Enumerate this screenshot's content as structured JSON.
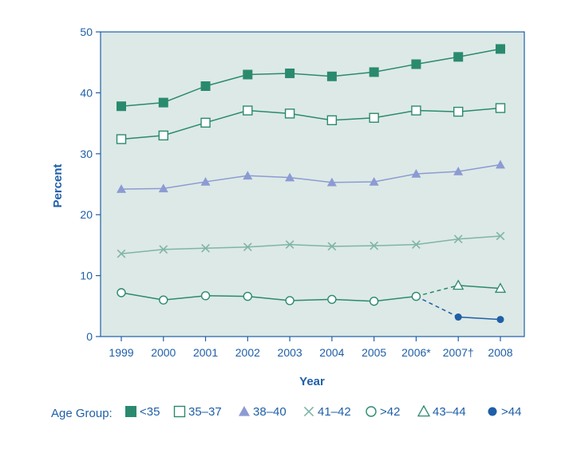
{
  "chart_data": {
    "type": "line",
    "title": "",
    "xlabel": "Year",
    "ylabel": "Percent",
    "ylim": [
      0,
      50
    ],
    "yticks": [
      0,
      10,
      20,
      30,
      40,
      50
    ],
    "categories": [
      "1999",
      "2000",
      "2001",
      "2002",
      "2003",
      "2004",
      "2005",
      "2006*",
      "2007†",
      "2008"
    ],
    "grid": false,
    "legend": {
      "title": "Age Group:",
      "placement": "bottom"
    },
    "series": [
      {
        "name": "<35",
        "marker": "filled-square",
        "color": "#2a8a6e",
        "linestyle": "solid",
        "values": [
          37.8,
          38.4,
          41.1,
          43.0,
          43.2,
          42.7,
          43.4,
          44.7,
          45.9,
          47.2
        ]
      },
      {
        "name": "35–37",
        "marker": "open-square",
        "color": "#2a8a6e",
        "linestyle": "solid",
        "values": [
          32.4,
          33.0,
          35.1,
          37.1,
          36.6,
          35.5,
          35.9,
          37.1,
          36.9,
          37.5
        ]
      },
      {
        "name": "38–40",
        "marker": "filled-triangle",
        "color": "#8c9bd3",
        "linestyle": "solid",
        "values": [
          24.2,
          24.3,
          25.4,
          26.4,
          26.1,
          25.3,
          25.4,
          26.7,
          27.1,
          28.2
        ]
      },
      {
        "name": "41–42",
        "marker": "x",
        "color": "#7fb5a6",
        "linestyle": "solid",
        "values": [
          13.6,
          14.3,
          14.5,
          14.7,
          15.1,
          14.8,
          14.9,
          15.1,
          16.0,
          16.5
        ]
      },
      {
        "name": ">42",
        "marker": "open-circle",
        "color": "#2a8a6e",
        "linestyle": "solid",
        "values": [
          7.2,
          6.0,
          6.7,
          6.6,
          5.9,
          6.1,
          5.8,
          6.6,
          null,
          null
        ]
      },
      {
        "name": "43–44",
        "marker": "open-triangle",
        "color": "#2a8a6e",
        "linestyle": "solid",
        "values": [
          null,
          null,
          null,
          null,
          null,
          null,
          null,
          null,
          8.4,
          7.9
        ]
      },
      {
        "name": ">44",
        "marker": "filled-circle",
        "color": "#1f5fa8",
        "linestyle": "solid",
        "values": [
          null,
          null,
          null,
          null,
          null,
          null,
          null,
          null,
          3.2,
          2.8
        ]
      }
    ],
    "connectors": [
      {
        "from": ">42",
        "to": "43–44",
        "from_index": 7,
        "to_index": 8,
        "linestyle": "dashed",
        "color": "#2a8a6e"
      },
      {
        "from": ">42",
        "to": ">44",
        "from_index": 7,
        "to_index": 8,
        "linestyle": "dashed",
        "color": "#1f5fa8"
      }
    ],
    "colors": {
      "plot_background": "#dde9e6",
      "axis": "#1f5fa8",
      "text": "#1f5fa8"
    }
  }
}
